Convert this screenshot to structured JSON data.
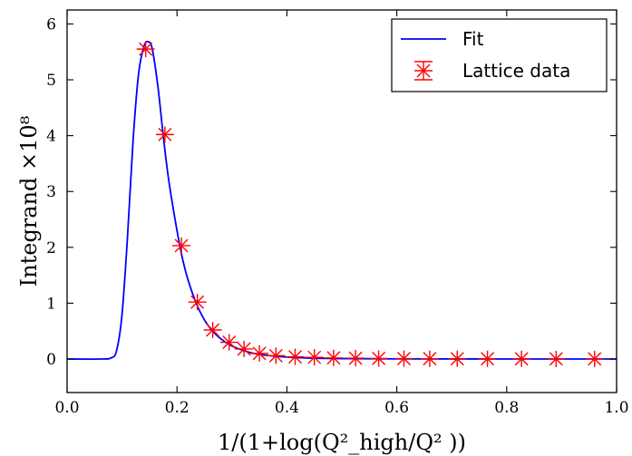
{
  "chart_data": {
    "type": "line",
    "xlabel": "1/(1+log(Q²_high/Q² ))",
    "ylabel": "Integrand ×10⁸",
    "xlim": [
      0.0,
      1.0
    ],
    "ylim": [
      -0.6,
      6.25
    ],
    "xticks": [
      "0.0",
      "0.2",
      "0.4",
      "0.6",
      "0.8",
      "1.0"
    ],
    "yticks": [
      "0",
      "1",
      "2",
      "3",
      "4",
      "5",
      "6"
    ],
    "legend": {
      "placement": "top-right",
      "entries": [
        "Fit",
        "Lattice data"
      ]
    },
    "colors": {
      "fit": "#0000ff",
      "data": "#ff0000"
    },
    "series": [
      {
        "name": "Fit",
        "kind": "line",
        "x": [
          0.0,
          0.06,
          0.08,
          0.09,
          0.1,
          0.11,
          0.12,
          0.13,
          0.14,
          0.148,
          0.155,
          0.165,
          0.175,
          0.185,
          0.2,
          0.21,
          0.22,
          0.235,
          0.25,
          0.265,
          0.28,
          0.295,
          0.31,
          0.325,
          0.34,
          0.36,
          0.38,
          0.4,
          0.42,
          0.45,
          0.5,
          0.6,
          0.8,
          1.0
        ],
        "y": [
          0.0,
          0.0,
          0.02,
          0.15,
          0.8,
          2.2,
          3.9,
          5.1,
          5.6,
          5.68,
          5.55,
          4.9,
          4.0,
          3.2,
          2.3,
          1.8,
          1.42,
          1.0,
          0.7,
          0.5,
          0.36,
          0.26,
          0.19,
          0.14,
          0.1,
          0.07,
          0.05,
          0.035,
          0.025,
          0.015,
          0.008,
          0.003,
          0.001,
          0.0
        ]
      },
      {
        "name": "Lattice data",
        "kind": "points",
        "x": [
          0.143,
          0.178,
          0.208,
          0.237,
          0.265,
          0.295,
          0.322,
          0.35,
          0.38,
          0.415,
          0.45,
          0.485,
          0.525,
          0.567,
          0.613,
          0.66,
          0.71,
          0.765,
          0.827,
          0.89,
          0.96
        ],
        "y": [
          5.55,
          4.02,
          2.03,
          1.02,
          0.52,
          0.3,
          0.18,
          0.1,
          0.06,
          0.04,
          0.03,
          0.02,
          0.015,
          0.01,
          0.008,
          0.006,
          0.005,
          0.004,
          0.003,
          0.002,
          0.002
        ]
      }
    ]
  }
}
